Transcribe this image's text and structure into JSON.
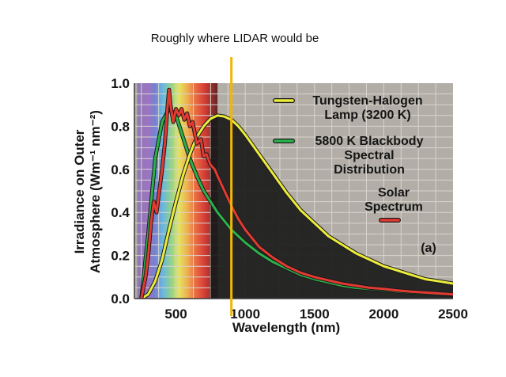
{
  "annotation": {
    "text": "Roughly where LIDAR would be",
    "x": 900,
    "color": "#f2b705"
  },
  "panel_label": "(a)",
  "chart_data": {
    "type": "line",
    "title": "",
    "xlabel": "Wavelength (nm)",
    "ylabel_line1": "Irradiance on Outer",
    "ylabel_line2": "Atmosphere (Wm⁻¹ nm⁻²)",
    "xlim": [
      200,
      2500
    ],
    "ylim": [
      0,
      1.0
    ],
    "x_ticks": [
      500,
      1000,
      1500,
      2000,
      2500
    ],
    "x_tick_labels": [
      "500",
      "1000",
      "1500",
      "2000",
      "2500"
    ],
    "y_ticks": [
      0,
      0.2,
      0.4,
      0.6,
      0.8,
      1.0
    ],
    "y_tick_labels": [
      "0.0",
      "0.2",
      "0.4",
      "0.6",
      "0.8",
      "1.0"
    ],
    "grid": true,
    "legend_position": "right",
    "colors": {
      "plot_background": "#b2aea7",
      "grid": "#d8d4ce",
      "tungsten": "#ecec3a",
      "blackbody": "#2bb24a",
      "solar": "#e23a32",
      "curve_outline": "#1a1a1a",
      "infrared_fill": "#1a1a1a"
    },
    "legend": [
      {
        "key": "tungsten",
        "lines": [
          "Tungsten-Halogen",
          "Lamp (3200 K)"
        ],
        "color": "#ecec3a"
      },
      {
        "key": "blackbody",
        "lines": [
          "5800 K Blackbody",
          "Spectral",
          "Distribution"
        ],
        "color": "#2bb24a"
      },
      {
        "key": "solar",
        "lines": [
          "Solar",
          "Spectrum"
        ],
        "color": "#e23a32"
      }
    ],
    "series": [
      {
        "key": "tungsten",
        "x": [
          250,
          300,
          350,
          400,
          450,
          500,
          550,
          600,
          650,
          700,
          750,
          800,
          850,
          900,
          950,
          1000,
          1100,
          1200,
          1300,
          1400,
          1500,
          1600,
          1700,
          1800,
          1900,
          2000,
          2100,
          2200,
          2300,
          2400,
          2500
        ],
        "y": [
          0.0,
          0.02,
          0.08,
          0.18,
          0.32,
          0.45,
          0.57,
          0.67,
          0.75,
          0.8,
          0.835,
          0.85,
          0.845,
          0.83,
          0.8,
          0.76,
          0.67,
          0.58,
          0.49,
          0.41,
          0.35,
          0.29,
          0.25,
          0.21,
          0.18,
          0.15,
          0.13,
          0.11,
          0.09,
          0.08,
          0.07
        ]
      },
      {
        "key": "blackbody",
        "x": [
          250,
          300,
          350,
          400,
          450,
          500,
          550,
          600,
          650,
          700,
          800,
          900,
          1000,
          1100,
          1200,
          1300,
          1400,
          1500,
          1600,
          1700,
          1800,
          1900,
          2000,
          2100,
          2200,
          2300,
          2400,
          2500
        ],
        "y": [
          0.0,
          0.3,
          0.65,
          0.82,
          0.88,
          0.85,
          0.75,
          0.65,
          0.57,
          0.5,
          0.4,
          0.32,
          0.26,
          0.21,
          0.17,
          0.14,
          0.11,
          0.09,
          0.075,
          0.06,
          0.05,
          0.045,
          0.04,
          0.033,
          0.028,
          0.024,
          0.02,
          0.018
        ]
      },
      {
        "key": "solar",
        "x": [
          250,
          280,
          300,
          320,
          340,
          360,
          380,
          400,
          420,
          440,
          450,
          460,
          480,
          500,
          520,
          540,
          560,
          580,
          600,
          620,
          650,
          680,
          700,
          720,
          750,
          780,
          800,
          850,
          900,
          950,
          1000,
          1100,
          1200,
          1300,
          1400,
          1500,
          1600,
          1700,
          1800,
          1900,
          2000,
          2100,
          2200,
          2300,
          2400,
          2500
        ],
        "y": [
          0.0,
          0.1,
          0.2,
          0.35,
          0.45,
          0.4,
          0.5,
          0.6,
          0.72,
          0.9,
          0.97,
          0.9,
          0.82,
          0.88,
          0.85,
          0.88,
          0.83,
          0.86,
          0.8,
          0.82,
          0.72,
          0.74,
          0.66,
          0.67,
          0.62,
          0.6,
          0.57,
          0.5,
          0.43,
          0.37,
          0.32,
          0.24,
          0.19,
          0.15,
          0.12,
          0.1,
          0.085,
          0.07,
          0.06,
          0.05,
          0.045,
          0.038,
          0.032,
          0.028,
          0.024,
          0.02
        ]
      }
    ]
  }
}
